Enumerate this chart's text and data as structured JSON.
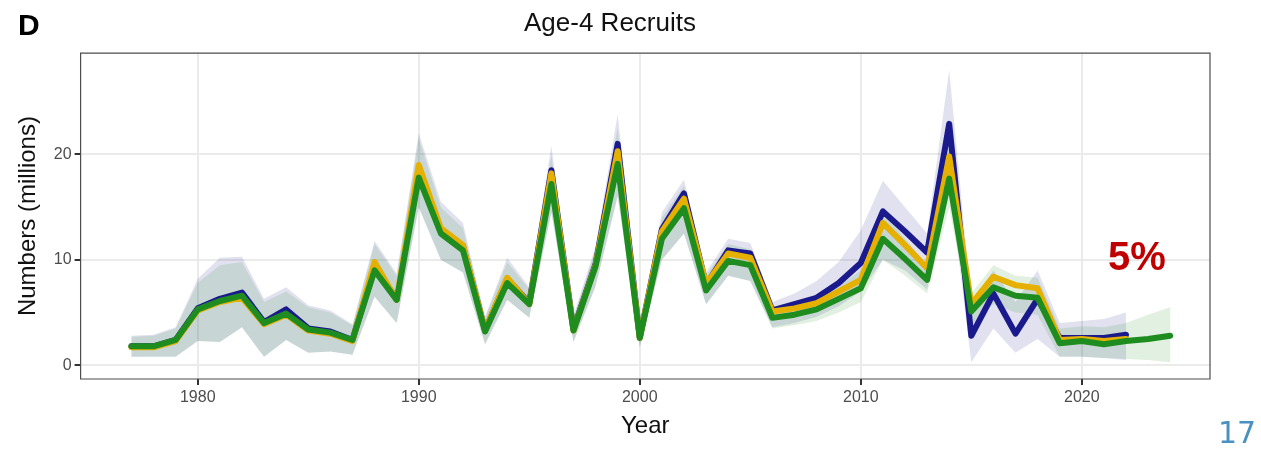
{
  "chart_data": {
    "type": "line",
    "title": "Age-4 Recruits",
    "xlabel": "Year",
    "ylabel": "Numbers (millions)",
    "annotations": [
      "D",
      "5%",
      "17"
    ],
    "x": [
      1977,
      1978,
      1979,
      1980,
      1981,
      1982,
      1983,
      1984,
      1985,
      1986,
      1987,
      1988,
      1989,
      1990,
      1991,
      1992,
      1993,
      1994,
      1995,
      1996,
      1997,
      1998,
      1999,
      2000,
      2001,
      2002,
      2003,
      2004,
      2005,
      2006,
      2007,
      2008,
      2009,
      2010,
      2011,
      2012,
      2013,
      2014,
      2015,
      2016,
      2017,
      2018,
      2019,
      2020,
      2021,
      2022,
      2023,
      2024
    ],
    "series": [
      {
        "color": "#1a1a8c",
        "values": [
          1.8,
          1.8,
          2.4,
          5.4,
          6.3,
          6.9,
          4.1,
          5.3,
          3.5,
          3.2,
          2.4,
          9.3,
          6.3,
          null,
          12.9,
          11.3,
          3.3,
          8.2,
          5.9,
          18.5,
          3.4,
          9.6,
          21.0,
          2.6,
          12.9,
          16.3,
          7.6,
          10.9,
          10.6,
          5.2,
          5.8,
          6.4,
          7.8,
          9.7,
          14.6,
          12.7,
          10.7,
          22.9,
          2.8,
          6.8,
          3.0,
          6.3,
          2.6,
          2.6,
          2.6,
          2.9,
          null,
          null
        ],
        "lower": [
          0.8,
          0.8,
          0.8,
          2.3,
          2.2,
          3.6,
          0.8,
          2.4,
          1.2,
          1.3,
          1.0,
          6.5,
          4.0,
          15.0,
          10.0,
          8.8,
          2.0,
          6.2,
          4.5,
          14.5,
          2.2,
          7.5,
          16.0,
          1.7,
          10.0,
          12.5,
          5.8,
          8.5,
          8.0,
          3.6,
          4.0,
          4.6,
          5.6,
          7.0,
          10.0,
          9.0,
          7.2,
          17.5,
          0.3,
          3.5,
          1.2,
          2.5,
          0.8,
          0.8,
          0.7,
          0.5,
          null,
          null
        ],
        "upper": [
          2.8,
          2.9,
          3.6,
          8.2,
          10.2,
          10.3,
          6.3,
          7.4,
          5.7,
          5.2,
          3.9,
          11.8,
          8.7,
          22.0,
          15.5,
          13.5,
          4.6,
          10.2,
          7.4,
          20.8,
          4.7,
          11.3,
          23.8,
          3.7,
          14.5,
          17.6,
          8.8,
          12.0,
          11.6,
          6.0,
          6.8,
          8.0,
          9.8,
          12.8,
          17.5,
          15.0,
          12.5,
          28.0,
          6.0,
          9.0,
          6.0,
          9.0,
          4.0,
          4.2,
          4.4,
          5.0,
          null,
          null
        ]
      },
      {
        "color": "#e6b000",
        "values": [
          1.7,
          1.7,
          2.3,
          5.2,
          6.0,
          6.4,
          3.9,
          4.8,
          3.3,
          3.0,
          2.3,
          9.8,
          6.2,
          19.0,
          13.0,
          11.4,
          3.3,
          8.3,
          5.8,
          18.2,
          3.3,
          9.5,
          20.3,
          2.6,
          12.7,
          15.8,
          7.7,
          10.6,
          10.2,
          5.1,
          5.4,
          5.9,
          7.0,
          8.1,
          13.5,
          11.4,
          9.2,
          19.8,
          5.8,
          8.4,
          7.6,
          7.3,
          2.4,
          2.5,
          2.3,
          2.5,
          null,
          null
        ]
      },
      {
        "color": "#1e8c1e",
        "values": [
          1.8,
          1.8,
          2.4,
          5.3,
          6.1,
          6.6,
          4.0,
          4.9,
          3.4,
          3.1,
          2.4,
          9.0,
          6.2,
          17.8,
          12.5,
          10.9,
          3.2,
          7.8,
          5.8,
          17.2,
          3.3,
          9.4,
          19.1,
          2.6,
          12.0,
          14.9,
          7.1,
          9.9,
          9.5,
          4.5,
          4.8,
          5.3,
          6.3,
          7.3,
          12.0,
          10.1,
          8.1,
          17.7,
          5.1,
          7.4,
          6.6,
          6.4,
          2.1,
          2.3,
          2.0,
          2.3,
          2.5,
          2.8
        ],
        "lower": [
          0.8,
          0.8,
          0.8,
          2.3,
          2.2,
          3.6,
          0.8,
          2.4,
          1.2,
          1.3,
          1.0,
          6.5,
          4.0,
          15.0,
          10.0,
          8.8,
          2.0,
          6.2,
          4.5,
          14.5,
          2.2,
          7.5,
          16.0,
          1.7,
          10.0,
          12.5,
          5.8,
          8.5,
          8.0,
          3.5,
          3.8,
          4.2,
          5.0,
          6.0,
          10.0,
          8.5,
          6.8,
          15.0,
          3.8,
          5.8,
          5.0,
          4.8,
          0.8,
          0.8,
          0.7,
          0.6,
          0.5,
          0.3
        ],
        "upper": [
          2.7,
          2.8,
          3.5,
          7.8,
          9.5,
          9.8,
          6.0,
          7.0,
          5.5,
          5.0,
          3.8,
          11.5,
          8.5,
          21.5,
          15.0,
          13.0,
          4.5,
          9.8,
          7.2,
          20.0,
          4.5,
          11.0,
          22.5,
          3.6,
          14.0,
          17.0,
          8.5,
          11.5,
          11.0,
          5.5,
          6.0,
          6.5,
          7.5,
          9.0,
          14.5,
          12.0,
          9.5,
          21.0,
          6.8,
          9.5,
          8.5,
          8.3,
          3.5,
          3.7,
          3.6,
          4.0,
          4.8,
          5.5
        ]
      }
    ],
    "xlim": [
      1974.7,
      2025.8
    ],
    "xticks": [
      1980,
      1990,
      2000,
      2010,
      2020
    ],
    "ylim": [
      -1.3,
      29.6
    ],
    "yticks": [
      0,
      10,
      20
    ],
    "grid": true,
    "line_style": "solid",
    "marker": "none"
  }
}
